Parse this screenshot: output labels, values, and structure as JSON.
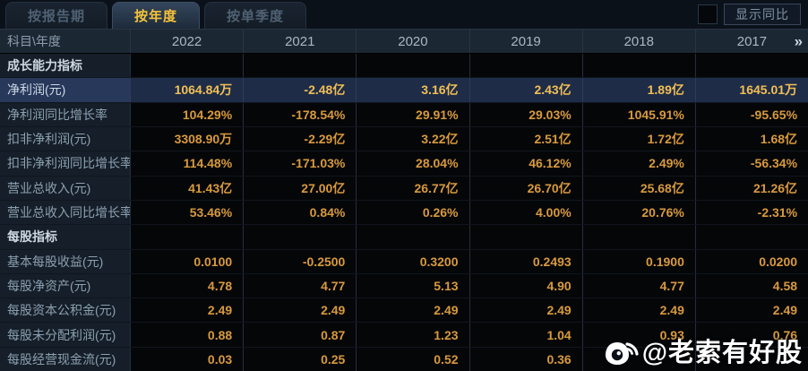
{
  "tabs": [
    {
      "label": "按报告期",
      "active": false
    },
    {
      "label": "按年度",
      "active": true
    },
    {
      "label": "按单季度",
      "active": false
    }
  ],
  "controls": {
    "yoy_checkbox_checked": false,
    "yoy_button_label": "显示同比"
  },
  "table": {
    "corner_label": "科目\\年度",
    "years": [
      "2022",
      "2021",
      "2020",
      "2019",
      "2018",
      "2017"
    ],
    "more_icon": "»",
    "rows": [
      {
        "type": "section",
        "label": "成长能力指标",
        "values": [
          "",
          "",
          "",
          "",
          "",
          ""
        ]
      },
      {
        "type": "highlight",
        "label": "净利润(元)",
        "values": [
          "1064.84万",
          "-2.48亿",
          "3.16亿",
          "2.43亿",
          "1.89亿",
          "1645.01万"
        ]
      },
      {
        "type": "normal",
        "label": "净利润同比增长率",
        "values": [
          "104.29%",
          "-178.54%",
          "29.91%",
          "29.03%",
          "1045.91%",
          "-95.65%"
        ]
      },
      {
        "type": "normal",
        "label": "扣非净利润(元)",
        "values": [
          "3308.90万",
          "-2.29亿",
          "3.22亿",
          "2.51亿",
          "1.72亿",
          "1.68亿"
        ]
      },
      {
        "type": "normal",
        "label": "扣非净利润同比增长率",
        "values": [
          "114.48%",
          "-171.03%",
          "28.04%",
          "46.12%",
          "2.49%",
          "-56.34%"
        ]
      },
      {
        "type": "normal",
        "label": "营业总收入(元)",
        "values": [
          "41.43亿",
          "27.00亿",
          "26.77亿",
          "26.70亿",
          "25.68亿",
          "21.26亿"
        ]
      },
      {
        "type": "normal",
        "label": "营业总收入同比增长率",
        "values": [
          "53.46%",
          "0.84%",
          "0.26%",
          "4.00%",
          "20.76%",
          "-2.31%"
        ]
      },
      {
        "type": "section",
        "label": "每股指标",
        "values": [
          "",
          "",
          "",
          "",
          "",
          ""
        ]
      },
      {
        "type": "normal",
        "label": "基本每股收益(元)",
        "values": [
          "0.0100",
          "-0.2500",
          "0.3200",
          "0.2493",
          "0.1900",
          "0.0200"
        ]
      },
      {
        "type": "normal",
        "label": "每股净资产(元)",
        "values": [
          "4.78",
          "4.77",
          "5.13",
          "4.90",
          "4.77",
          "4.58"
        ]
      },
      {
        "type": "normal",
        "label": "每股资本公积金(元)",
        "values": [
          "2.49",
          "2.49",
          "2.49",
          "2.49",
          "2.49",
          "2.49"
        ]
      },
      {
        "type": "normal",
        "label": "每股未分配利润(元)",
        "values": [
          "0.88",
          "0.87",
          "1.23",
          "1.04",
          "0.93",
          "0.76"
        ]
      },
      {
        "type": "normal",
        "label": "每股经营现金流(元)",
        "values": [
          "0.03",
          "0.25",
          "0.52",
          "0.36",
          "",
          ""
        ]
      }
    ]
  },
  "watermark": {
    "text": "@老索有好股"
  },
  "colors": {
    "accent_gold": "#f5c33b",
    "value_orange": "#d89a3d",
    "highlight_row_bg": "#1e2c48",
    "label_col_bg": "#151e29",
    "header_bg": "#1c2734"
  }
}
